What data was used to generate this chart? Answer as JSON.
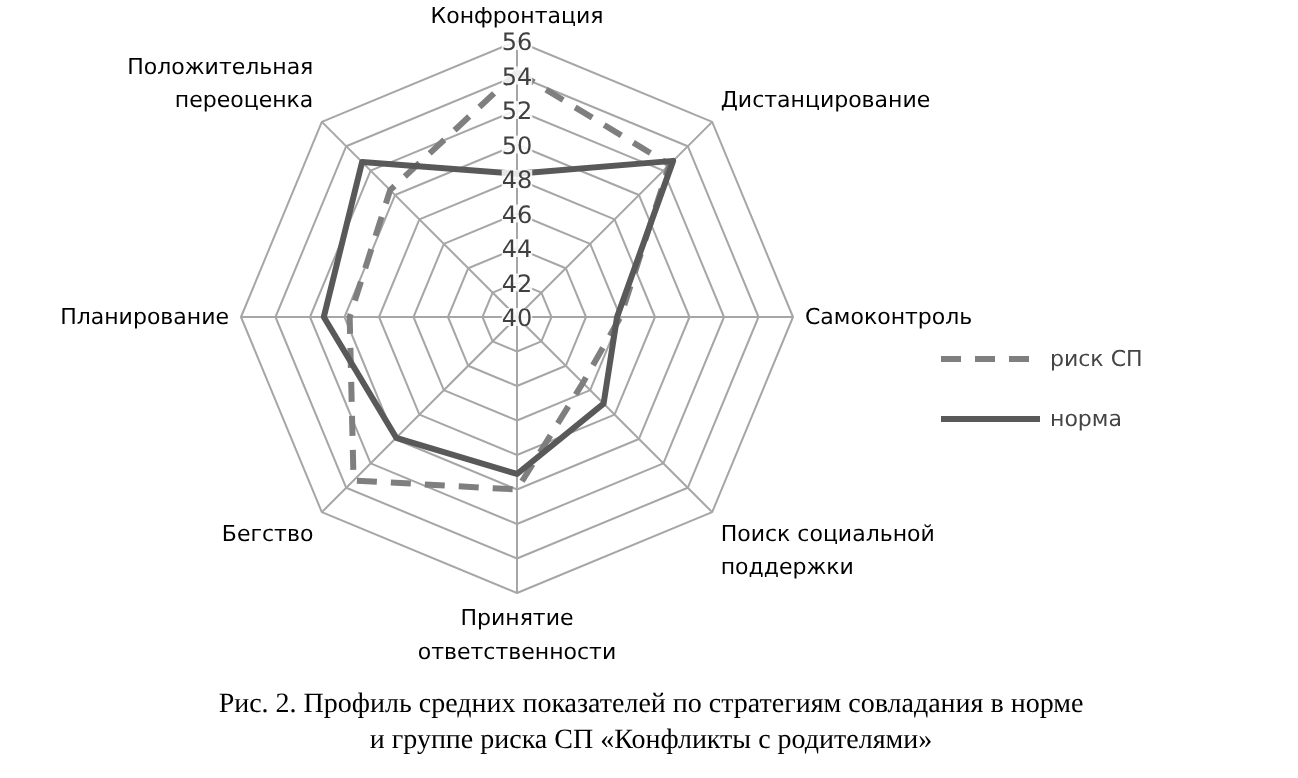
{
  "chart_data": {
    "type": "radar",
    "categories": [
      "Конфронтация",
      "Дистанцирование",
      "Самоконтроль",
      "Поиск социальной\nподдержки",
      "Принятие\nответственности",
      "Бегство",
      "Планирование",
      "Положительная\nпереоценка"
    ],
    "series": [
      {
        "name": "риск СП",
        "color": "#7f7f7f",
        "line_style": "dashed",
        "values": [
          54.2,
          52.5,
          46.0,
          45.4,
          50.0,
          53.4,
          49.7,
          50.4
        ]
      },
      {
        "name": "норма",
        "color": "#595959",
        "line_style": "solid",
        "values": [
          48.3,
          52.8,
          45.8,
          47.1,
          49.1,
          49.9,
          51.2,
          52.7
        ]
      }
    ],
    "ylim": [
      40,
      56
    ],
    "yticks": [
      40,
      42,
      44,
      46,
      48,
      50,
      52,
      54,
      56
    ],
    "grid": true,
    "legend": "right",
    "marker": "none",
    "annotations": [
      "Рис. 2. Профиль средних показателей по стратегиям совладания в норме\nи группе риска СП «Конфликты с родителями»"
    ]
  }
}
